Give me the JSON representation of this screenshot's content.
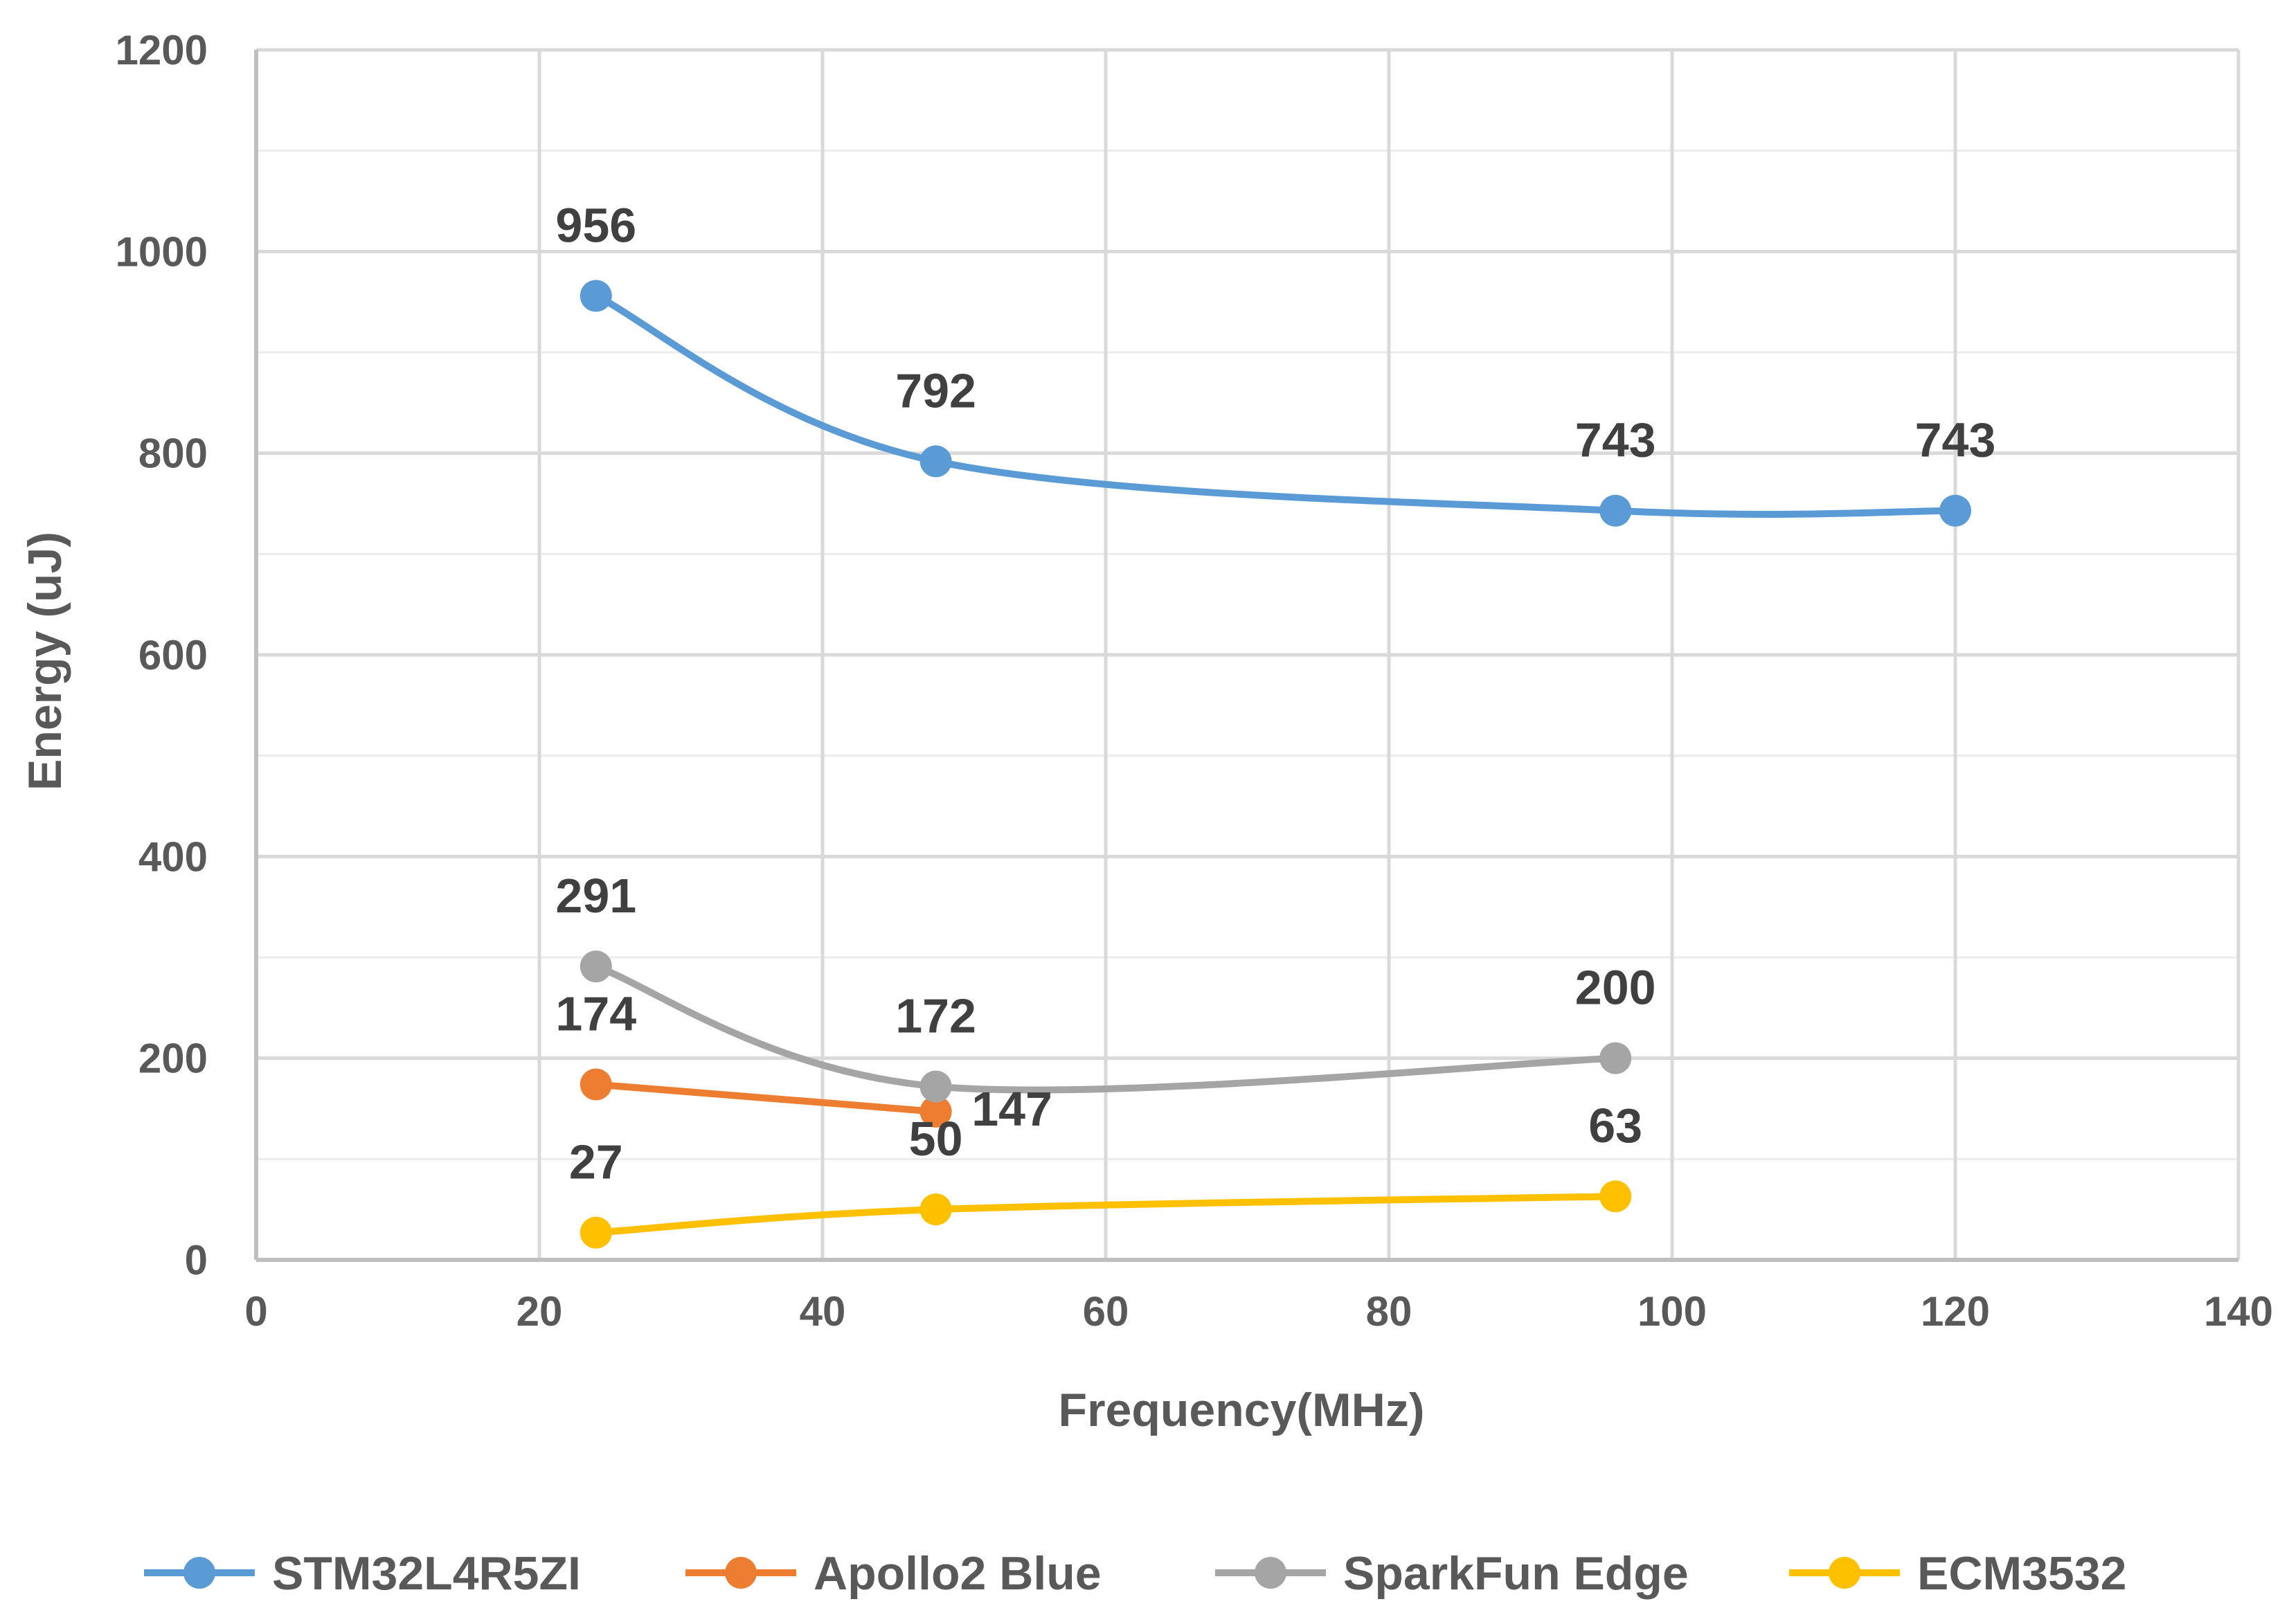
{
  "chart_data": {
    "type": "line",
    "xlabel": "Frequency(MHz)",
    "ylabel": "Energy (uJ)",
    "xlim": [
      0,
      140
    ],
    "ylim": [
      0,
      1200
    ],
    "x_ticks": [
      0,
      20,
      40,
      60,
      80,
      100,
      120,
      140
    ],
    "y_ticks": [
      0,
      200,
      400,
      600,
      800,
      1000,
      1200
    ],
    "x_tick_labels": [
      "0",
      "20",
      "40",
      "60",
      "80",
      "100",
      "120",
      "140"
    ],
    "y_tick_labels": [
      "0",
      "200",
      "400",
      "600",
      "800",
      "1000",
      "1200"
    ],
    "grid": true,
    "legend_position": "bottom",
    "series": [
      {
        "name": "STM32L4R5ZI",
        "color": "#5B9BD5",
        "x": [
          24,
          48,
          96,
          120
        ],
        "values": [
          956,
          792,
          743,
          743
        ],
        "labels": [
          "956",
          "792",
          "743",
          "743"
        ]
      },
      {
        "name": "Apollo2 Blue",
        "color": "#ED7D31",
        "x": [
          24,
          48
        ],
        "values": [
          174,
          147
        ],
        "labels": [
          "174",
          "147"
        ]
      },
      {
        "name": "SparkFun Edge",
        "color": "#A5A5A5",
        "x": [
          24,
          48,
          96
        ],
        "values": [
          291,
          172,
          200
        ],
        "labels": [
          "291",
          "172",
          "200"
        ]
      },
      {
        "name": "ECM3532",
        "color": "#FFC000",
        "x": [
          24,
          48,
          96
        ],
        "values": [
          27,
          50,
          63
        ],
        "labels": [
          "27",
          "50",
          "63"
        ]
      }
    ]
  }
}
